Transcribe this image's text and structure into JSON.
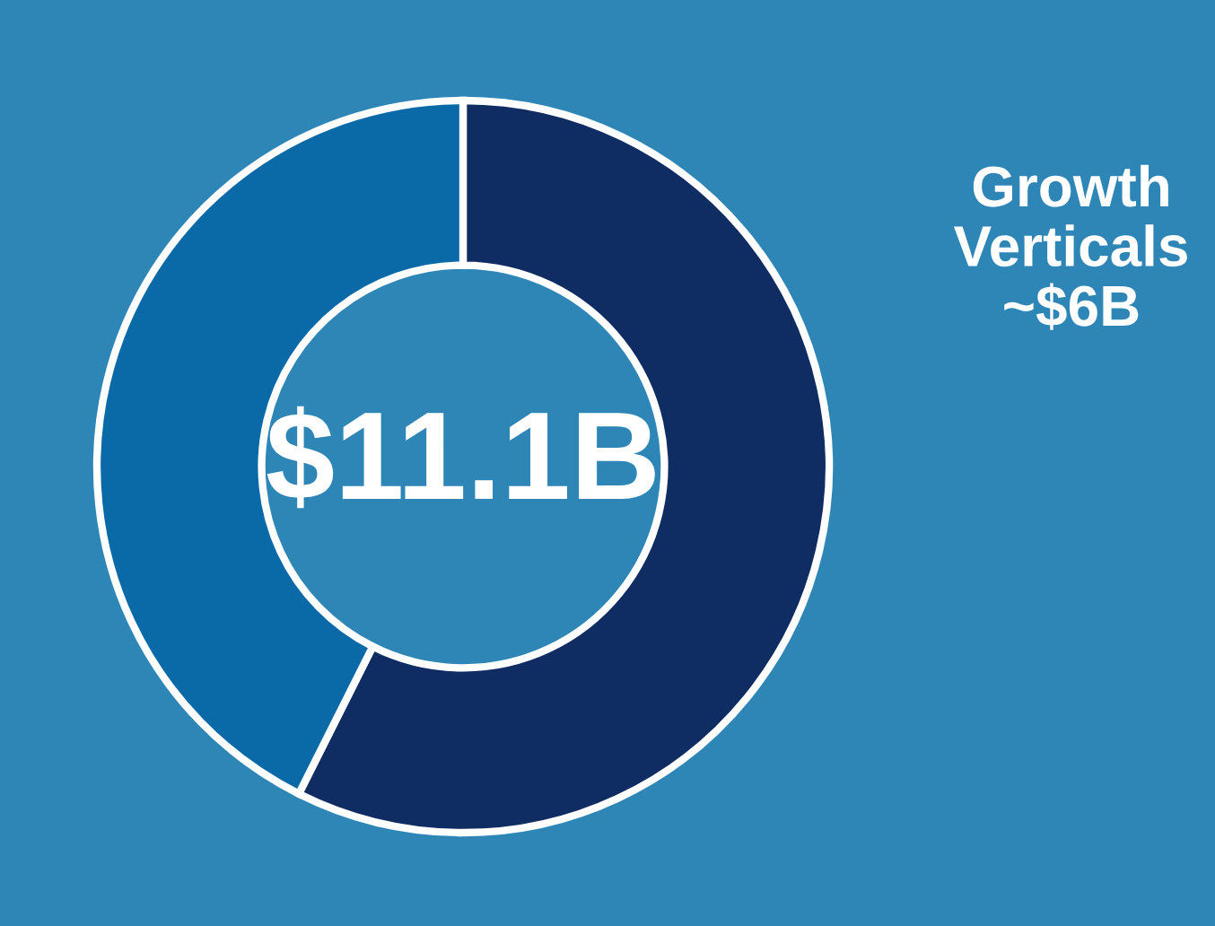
{
  "chart_data": {
    "type": "donut",
    "categories": [
      "Growth\nVerticals\n~$6B",
      null
    ],
    "values": [
      57.4,
      42.6
    ],
    "colors": [
      "#0f2d62",
      "#0a6aa8"
    ],
    "annotations": [
      "$11.1B"
    ],
    "legend": false
  }
}
